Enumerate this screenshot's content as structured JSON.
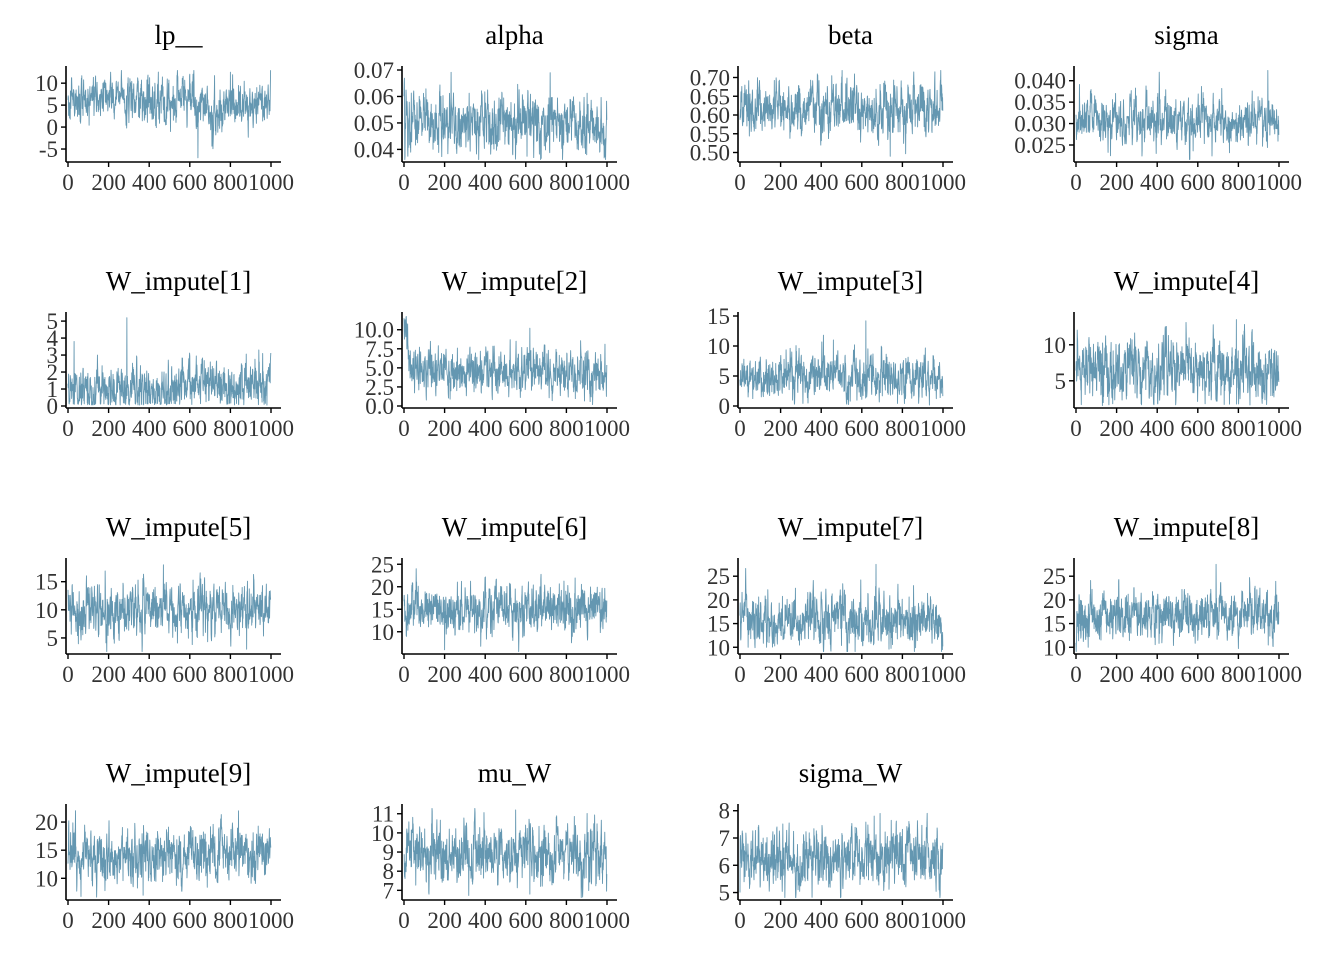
{
  "chart_data": {
    "type": "line",
    "layout": "grid-4-columns",
    "trace_color": "#6497b1",
    "background": "#ffffff",
    "x_range": [
      0,
      1000
    ],
    "x_ticks": [
      0,
      200,
      400,
      600,
      800,
      1000
    ],
    "x_tick_labels": [
      "0",
      "200",
      "400",
      "600",
      "800",
      "1000"
    ],
    "panels": [
      {
        "title": "lp__",
        "ylim": [
          -7.5,
          13
        ],
        "y_ticks": [
          -5,
          0,
          5,
          10
        ],
        "y_tick_labels": [
          "-5",
          "0",
          "5",
          "10"
        ],
        "mean": 5.5,
        "sd": 2.6,
        "segments": [
          [
            0,
            5.5
          ],
          [
            180,
            7.0
          ],
          [
            380,
            5.5
          ],
          [
            600,
            7.0
          ],
          [
            700,
            2.0
          ],
          [
            800,
            5.0
          ],
          [
            1000,
            5.0
          ]
        ],
        "extremes": [
          [
            640,
            -7.0
          ],
          [
            800,
            12.5
          ]
        ]
      },
      {
        "title": "alpha",
        "ylim": [
          0.036,
          0.07
        ],
        "y_ticks": [
          0.04,
          0.05,
          0.06,
          0.07
        ],
        "y_tick_labels": [
          "0.04",
          "0.05",
          "0.06",
          "0.07"
        ],
        "mean": 0.05,
        "sd": 0.0055,
        "segments": [
          [
            0,
            0.05
          ],
          [
            1000,
            0.05
          ]
        ],
        "extremes": [
          [
            720,
            0.069
          ],
          [
            900,
            0.038
          ]
        ]
      },
      {
        "title": "beta",
        "ylim": [
          0.48,
          0.72
        ],
        "y_ticks": [
          0.5,
          0.55,
          0.6,
          0.65,
          0.7
        ],
        "y_tick_labels": [
          "0.50",
          "0.55",
          "0.60",
          "0.65",
          "0.70"
        ],
        "mean": 0.615,
        "sd": 0.035,
        "segments": [
          [
            0,
            0.62
          ],
          [
            1000,
            0.61
          ]
        ],
        "extremes": [
          [
            740,
            0.49
          ],
          [
            960,
            0.715
          ]
        ]
      },
      {
        "title": "sigma",
        "ylim": [
          0.0215,
          0.0425
        ],
        "y_ticks": [
          0.025,
          0.03,
          0.035,
          0.04
        ],
        "y_tick_labels": [
          "0.025",
          "0.030",
          "0.035",
          "0.040"
        ],
        "mean": 0.0305,
        "sd": 0.0026,
        "segments": [
          [
            0,
            0.031
          ],
          [
            1000,
            0.0305
          ]
        ],
        "extremes": [
          [
            945,
            0.0425
          ],
          [
            170,
            0.0225
          ]
        ]
      },
      {
        "title": "W_impute[1]",
        "ylim": [
          0,
          5.3
        ],
        "y_ticks": [
          0,
          1,
          2,
          3,
          4,
          5
        ],
        "y_tick_labels": [
          "0",
          "1",
          "2",
          "3",
          "4",
          "5"
        ],
        "mean": 1.1,
        "sd": 0.7,
        "positive": true,
        "segments": [
          [
            0,
            1.2
          ],
          [
            450,
            0.8
          ],
          [
            620,
            1.6
          ],
          [
            800,
            0.9
          ],
          [
            1000,
            1.3
          ]
        ],
        "extremes": [
          [
            290,
            5.2
          ],
          [
            30,
            3.8
          ],
          [
            940,
            3.3
          ]
        ]
      },
      {
        "title": "W_impute[2]",
        "ylim": [
          0,
          11.8
        ],
        "y_ticks": [
          0,
          2.5,
          5,
          7.5,
          10
        ],
        "y_tick_labels": [
          "0.0",
          "2.5",
          "5.0",
          "7.5",
          "10.0"
        ],
        "mean": 4.5,
        "sd": 1.5,
        "positive": true,
        "segments": [
          [
            0,
            10.5
          ],
          [
            20,
            8.0
          ],
          [
            40,
            4.5
          ],
          [
            1000,
            4.5
          ]
        ],
        "extremes": [
          [
            0,
            11.5
          ],
          [
            620,
            10.2
          ]
        ]
      },
      {
        "title": "W_impute[3]",
        "ylim": [
          0,
          15
        ],
        "y_ticks": [
          0,
          5,
          10,
          15
        ],
        "y_tick_labels": [
          "0",
          "5",
          "10",
          "15"
        ],
        "mean": 4.9,
        "sd": 1.8,
        "positive": true,
        "segments": [
          [
            0,
            5.0
          ],
          [
            1000,
            4.8
          ]
        ],
        "extremes": [
          [
            620,
            14.2
          ],
          [
            460,
            11.0
          ]
        ]
      },
      {
        "title": "W_impute[4]",
        "ylim": [
          1.5,
          14
        ],
        "y_ticks": [
          5,
          10
        ],
        "y_tick_labels": [
          "5",
          "10"
        ],
        "mean": 6.7,
        "sd": 2.1,
        "positive": true,
        "segments": [
          [
            0,
            6.5
          ],
          [
            1000,
            6.5
          ]
        ],
        "extremes": [
          [
            790,
            13.5
          ],
          [
            130,
            1.5
          ]
        ]
      },
      {
        "title": "W_impute[5]",
        "ylim": [
          2.5,
          18.5
        ],
        "y_ticks": [
          5,
          10,
          15
        ],
        "y_tick_labels": [
          "5",
          "10",
          "15"
        ],
        "mean": 10.2,
        "sd": 2.3,
        "segments": [
          [
            0,
            10.0
          ],
          [
            1000,
            10.5
          ]
        ],
        "extremes": [
          [
            470,
            18.0
          ],
          [
            880,
            3.0
          ]
        ]
      },
      {
        "title": "W_impute[6]",
        "ylim": [
          5.5,
          25.5
        ],
        "y_ticks": [
          10,
          15,
          20,
          25
        ],
        "y_tick_labels": [
          "10",
          "15",
          "20",
          "25"
        ],
        "mean": 14.5,
        "sd": 2.8,
        "segments": [
          [
            0,
            15.0
          ],
          [
            1000,
            15.0
          ]
        ],
        "extremes": [
          [
            60,
            24.0
          ],
          [
            200,
            6.0
          ]
        ]
      },
      {
        "title": "W_impute[7]",
        "ylim": [
          9,
          28
        ],
        "y_ticks": [
          10,
          15,
          20,
          25
        ],
        "y_tick_labels": [
          "10",
          "15",
          "20",
          "25"
        ],
        "mean": 15.6,
        "sd": 2.8,
        "segments": [
          [
            0,
            16.0
          ],
          [
            1000,
            15.5
          ]
        ],
        "extremes": [
          [
            670,
            27.5
          ],
          [
            40,
            10.0
          ]
        ]
      },
      {
        "title": "W_impute[8]",
        "ylim": [
          9,
          28
        ],
        "y_ticks": [
          10,
          15,
          20,
          25
        ],
        "y_tick_labels": [
          "10",
          "15",
          "20",
          "25"
        ],
        "mean": 16.2,
        "sd": 2.6,
        "segments": [
          [
            0,
            16.5
          ],
          [
            1000,
            16.5
          ]
        ],
        "extremes": [
          [
            690,
            27.5
          ],
          [
            60,
            10.0
          ]
        ]
      },
      {
        "title": "W_impute[9]",
        "ylim": [
          6.5,
          22.5
        ],
        "y_ticks": [
          10,
          15,
          20
        ],
        "y_tick_labels": [
          "10",
          "15",
          "20"
        ],
        "mean": 14.0,
        "sd": 2.4,
        "segments": [
          [
            0,
            14.0
          ],
          [
            1000,
            14.0
          ]
        ],
        "extremes": [
          [
            840,
            22.0
          ],
          [
            370,
            7.0
          ]
        ]
      },
      {
        "title": "mu_W",
        "ylim": [
          6.6,
          11.3
        ],
        "y_ticks": [
          7,
          8,
          9,
          10,
          11
        ],
        "y_tick_labels": [
          "7",
          "8",
          "9",
          "10",
          "11"
        ],
        "mean": 8.9,
        "sd": 0.75,
        "segments": [
          [
            0,
            9.0
          ],
          [
            1000,
            8.9
          ]
        ],
        "extremes": [
          [
            550,
            11.2
          ],
          [
            620,
            6.8
          ]
        ]
      },
      {
        "title": "sigma_W",
        "ylim": [
          4.8,
          8.1
        ],
        "y_ticks": [
          5,
          6,
          7,
          8
        ],
        "y_tick_labels": [
          "5",
          "6",
          "7",
          "8"
        ],
        "mean": 6.3,
        "sd": 0.55,
        "segments": [
          [
            0,
            6.2
          ],
          [
            1000,
            6.3
          ]
        ],
        "extremes": [
          [
            0,
            5.0
          ],
          [
            690,
            7.9
          ]
        ]
      }
    ]
  }
}
